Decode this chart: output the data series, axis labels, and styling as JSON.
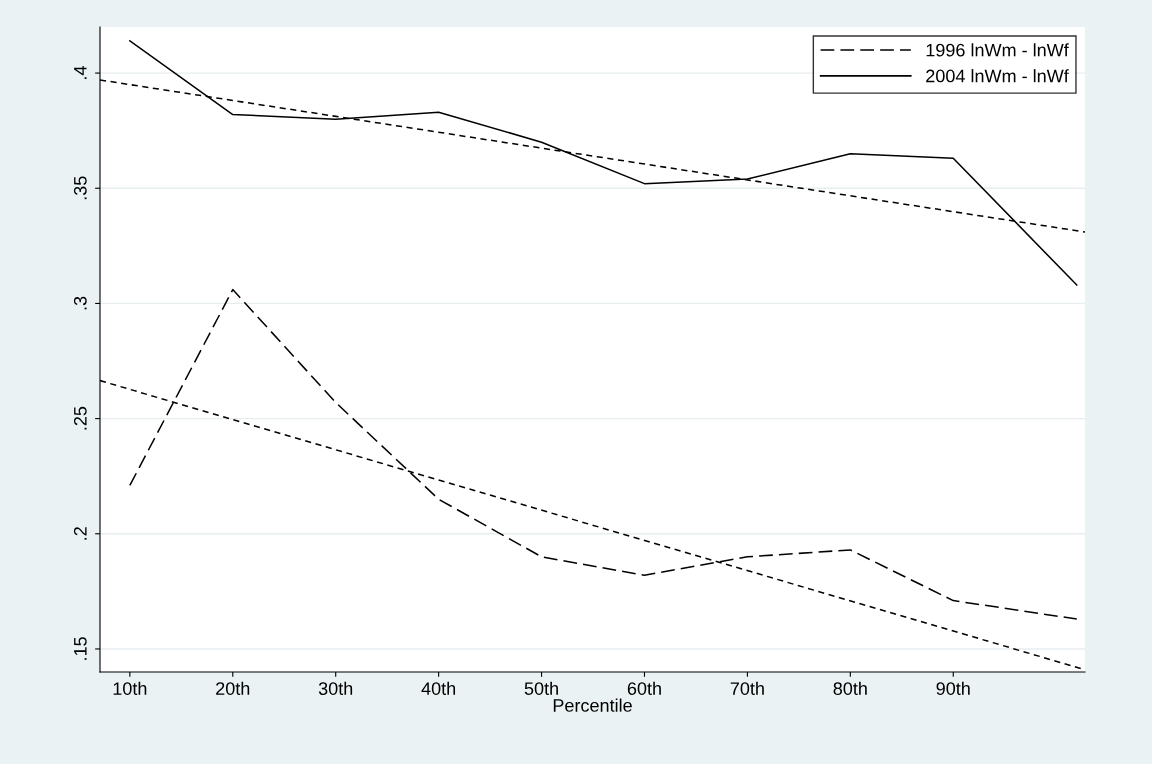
{
  "chart_data": {
    "type": "line",
    "xlabel": "Percentile",
    "xlim": [
      7.1,
      102.8
    ],
    "ylim": [
      0.14,
      0.42
    ],
    "xticks": [
      {
        "value": 10,
        "label": "10th"
      },
      {
        "value": 20,
        "label": "20th"
      },
      {
        "value": 30,
        "label": "30th"
      },
      {
        "value": 40,
        "label": "40th"
      },
      {
        "value": 50,
        "label": "50th"
      },
      {
        "value": 60,
        "label": "60th"
      },
      {
        "value": 70,
        "label": "70th"
      },
      {
        "value": 80,
        "label": "80th"
      },
      {
        "value": 90,
        "label": "90th"
      }
    ],
    "yticks": [
      {
        "value": 0.15,
        "label": ".15"
      },
      {
        "value": 0.2,
        "label": ".2"
      },
      {
        "value": 0.25,
        "label": ".25"
      },
      {
        "value": 0.3,
        "label": ".3"
      },
      {
        "value": 0.35,
        "label": ".35"
      },
      {
        "value": 0.4,
        "label": ".4"
      }
    ],
    "grid": "y",
    "legend": "top right",
    "marker": "none",
    "series": [
      {
        "name": "1996 lnWm - lnWf",
        "color": "#000000",
        "line_style": "dashed",
        "x": [
          10,
          20,
          30,
          40,
          50,
          60,
          70,
          80,
          90,
          102
        ],
        "values": [
          0.221,
          0.306,
          0.257,
          0.215,
          0.19,
          0.182,
          0.19,
          0.193,
          0.171,
          0.163
        ]
      },
      {
        "name": "2004 lnWm - lnWf",
        "color": "#000000",
        "line_style": "solid",
        "x": [
          10,
          20,
          30,
          40,
          50,
          60,
          70,
          80,
          90,
          102
        ],
        "values": [
          0.414,
          0.382,
          0.38,
          0.383,
          0.37,
          0.352,
          0.354,
          0.365,
          0.363,
          0.308
        ]
      },
      {
        "color": "#000000",
        "line_style": "dotted",
        "x": [
          7.1,
          102.8
        ],
        "values": [
          0.2665,
          0.141
        ]
      },
      {
        "color": "#000000",
        "line_style": "dotted",
        "x": [
          7.1,
          102.8
        ],
        "values": [
          0.397,
          0.331
        ]
      }
    ]
  }
}
